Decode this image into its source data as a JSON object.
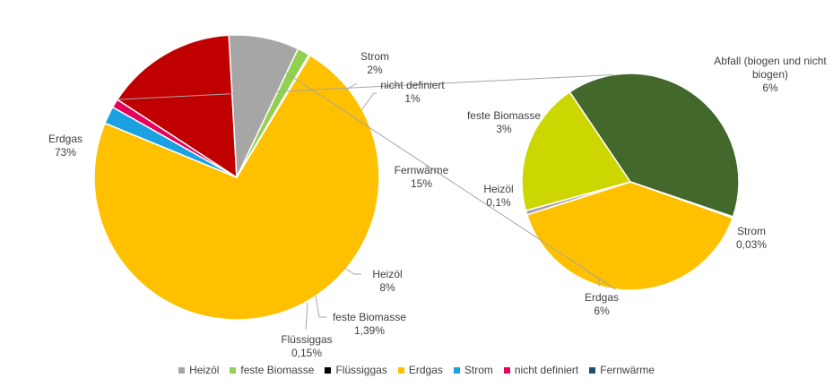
{
  "chart_data": {
    "type": "pie",
    "title": "",
    "main_pie": {
      "slices": [
        {
          "name": "Erdgas",
          "value": 73,
          "label": "Erdgas",
          "value_label": "73%",
          "color": "#FFC000"
        },
        {
          "name": "Strom",
          "value": 2,
          "label": "Strom",
          "value_label": "2%",
          "color": "#1BA1E2"
        },
        {
          "name": "nicht definiert",
          "value": 1,
          "label": "nicht definiert",
          "value_label": "1%",
          "color": "#E6005C"
        },
        {
          "name": "Fernwärme",
          "value": 15,
          "label": "Fernwärme",
          "value_label": "15%",
          "color": "#C00000"
        },
        {
          "name": "Heizöl",
          "value": 8,
          "label": "Heizöl",
          "value_label": "8%",
          "color": "#A6A6A6"
        },
        {
          "name": "feste Biomasse",
          "value": 1.39,
          "label": "feste Biomasse",
          "value_label": "1,39%",
          "color": "#92D050"
        },
        {
          "name": "Flüssiggas",
          "value": 0.15,
          "label": "Flüssiggas",
          "value_label": "0,15%",
          "color": "#000000"
        }
      ]
    },
    "breakdown_pie": {
      "of_slice": "Fernwärme",
      "slices": [
        {
          "name": "Abfall (biogen und nicht biogen)",
          "value": 6,
          "label": "Abfall (biogen und nicht biogen)",
          "label_lines": [
            "Abfall (biogen und nicht",
            "biogen)"
          ],
          "value_label": "6%",
          "color": "#43682B"
        },
        {
          "name": "Strom",
          "value": 0.03,
          "label": "Strom",
          "value_label": "0,03%",
          "color": "#1BA1E2"
        },
        {
          "name": "Erdgas",
          "value": 6,
          "label": "Erdgas",
          "value_label": "6%",
          "color": "#FFC000"
        },
        {
          "name": "Heizöl",
          "value": 0.1,
          "label": "Heizöl",
          "value_label": "0,1%",
          "color": "#A6A6A6"
        },
        {
          "name": "feste Biomasse",
          "value": 3,
          "label": "feste Biomasse",
          "value_label": "3%",
          "color": "#CCD600"
        }
      ]
    },
    "legend": {
      "position": "bottom",
      "entries": [
        {
          "name": "Heizöl",
          "color": "#A6A6A6"
        },
        {
          "name": "feste Biomasse",
          "color": "#92D050"
        },
        {
          "name": "Flüssiggas",
          "color": "#000000"
        },
        {
          "name": "Erdgas",
          "color": "#FFC000"
        },
        {
          "name": "Strom",
          "color": "#1BA1E2"
        },
        {
          "name": "nicht definiert",
          "color": "#E6005C"
        },
        {
          "name": "Fernwärme",
          "color": "#1F4E79"
        }
      ]
    }
  }
}
